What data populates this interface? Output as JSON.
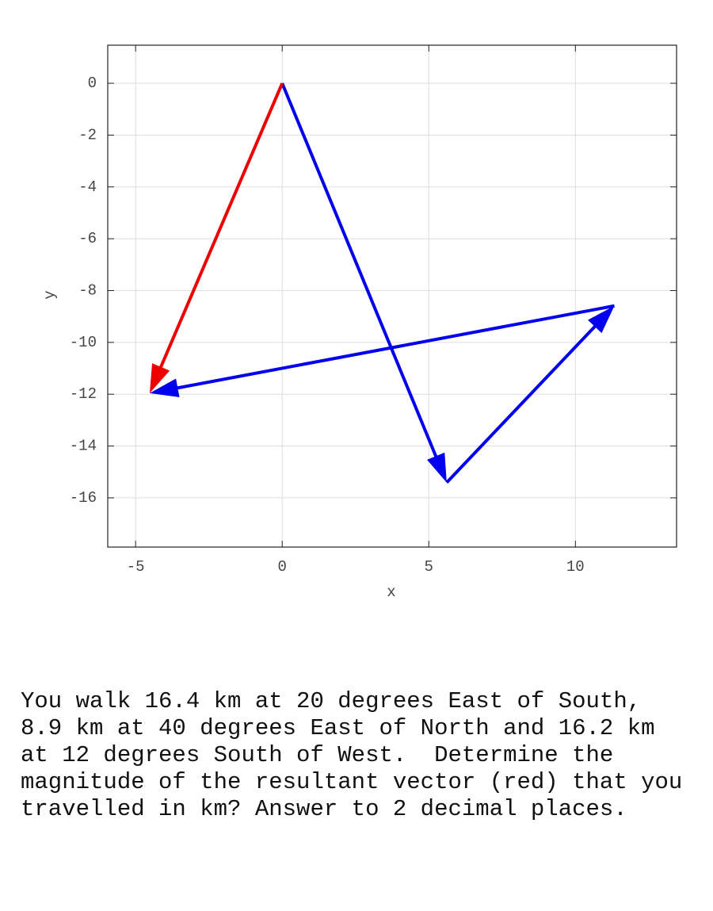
{
  "chart_data": {
    "type": "vector",
    "x_label": "x",
    "y_label": "y",
    "xlim": [
      -5.95,
      13.45
    ],
    "ylim": [
      -17.9,
      1.47
    ],
    "xticks": [
      -5,
      0,
      5,
      10
    ],
    "yticks": [
      0,
      -2,
      -4,
      -6,
      -8,
      -10,
      -12,
      -14,
      -16
    ],
    "grid": true,
    "series": [
      {
        "color": "#0000ee",
        "x": [
          0,
          5.61,
          11.33,
          -4.52
        ],
        "y": [
          0,
          -15.41,
          -8.59,
          -11.96
        ]
      },
      {
        "color": "#ee0000",
        "x": [
          0,
          -4.52
        ],
        "y": [
          0,
          -11.96
        ]
      }
    ]
  },
  "question": {
    "lines": [
      "You walk 16.4 km at 20 degrees East of South,",
      "8.9 km at 40 degrees East of North and 16.2 km",
      "at 12 degrees South of West.  Determine the",
      "magnitude of the resultant vector (red) that you",
      "travelled in km? Answer to 2 decimal places."
    ]
  }
}
